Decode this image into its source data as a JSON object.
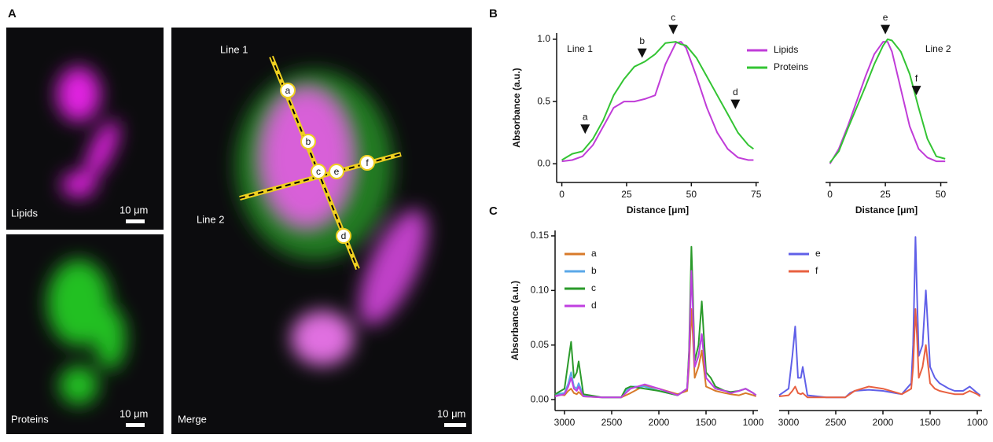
{
  "panel_a": {
    "panel": "A",
    "lipids_label": "Lipids",
    "proteins_label": "Proteins",
    "merge_label": "Merge",
    "scale_label_1": "10 μm",
    "scale_label_2": "10 μm",
    "scale_label_3": "10 μm",
    "line_1": "Line 1",
    "line_2": "Line 2",
    "markers": [
      "a",
      "b",
      "c",
      "d",
      "e",
      "f"
    ]
  },
  "chart_data": [
    {
      "type": "line",
      "panel": "B",
      "x_label": "Distance [μm]",
      "y_label": "Absorbance (a.u.)",
      "x": [
        0,
        4,
        8,
        12,
        16,
        20,
        24,
        28,
        32,
        36,
        40,
        44,
        46,
        48,
        52,
        56,
        60,
        64,
        68,
        72,
        74
      ],
      "series": [
        {
          "name": "Lipids",
          "color": "#c03cd8",
          "values": [
            0.02,
            0.03,
            0.06,
            0.15,
            0.3,
            0.45,
            0.5,
            0.5,
            0.52,
            0.55,
            0.8,
            0.97,
            0.98,
            0.93,
            0.7,
            0.45,
            0.25,
            0.12,
            0.05,
            0.03,
            0.03
          ]
        },
        {
          "name": "Proteins",
          "color": "#33c433",
          "values": [
            0.03,
            0.08,
            0.1,
            0.2,
            0.35,
            0.55,
            0.68,
            0.78,
            0.82,
            0.88,
            0.97,
            0.98,
            0.96,
            0.95,
            0.85,
            0.7,
            0.55,
            0.4,
            0.25,
            0.15,
            0.12
          ]
        }
      ],
      "xlim": [
        -2,
        76
      ],
      "ylim": [
        -0.15,
        1.05
      ],
      "xticks": [
        0,
        25,
        50,
        75
      ],
      "yticks": [
        {
          "value": 0,
          "label": "0.0"
        },
        0.5,
        {
          "value": 1,
          "label": "1.0"
        }
      ],
      "annotations": [
        {
          "text": "Line 1",
          "x": 2,
          "y": 0.92
        },
        {
          "text": "a",
          "x": 9,
          "y": 0.24,
          "arrow": true
        },
        {
          "text": "b",
          "x": 31,
          "y": 0.85,
          "arrow": true
        },
        {
          "text": "c",
          "x": 43,
          "y": 1.04,
          "arrow": true
        },
        {
          "text": "d",
          "x": 67,
          "y": 0.44,
          "arrow": true
        }
      ]
    },
    {
      "type": "line",
      "x_label": "Distance [μm]",
      "legend": "left",
      "x": [
        0,
        4,
        8,
        12,
        16,
        20,
        24,
        26,
        28,
        32,
        36,
        40,
        44,
        48,
        52
      ],
      "series": [
        {
          "name": "Lipids",
          "color": "#c03cd8",
          "values": [
            0.0,
            0.12,
            0.3,
            0.5,
            0.7,
            0.88,
            0.98,
            0.98,
            0.9,
            0.6,
            0.3,
            0.12,
            0.05,
            0.02,
            0.02
          ]
        },
        {
          "name": "Proteins",
          "color": "#33c433",
          "values": [
            0.01,
            0.1,
            0.28,
            0.45,
            0.62,
            0.8,
            0.95,
            1.0,
            0.99,
            0.9,
            0.72,
            0.45,
            0.2,
            0.06,
            0.04
          ]
        }
      ],
      "xlim": [
        -2,
        53
      ],
      "ylim": [
        -0.15,
        1.05
      ],
      "xticks": [
        0,
        25,
        50
      ],
      "annotations": [
        {
          "text": "Line 2",
          "x": 43,
          "y": 0.92
        },
        {
          "text": "e",
          "x": 25,
          "y": 1.04,
          "arrow": true
        },
        {
          "text": "f",
          "x": 39,
          "y": 0.55,
          "arrow": true
        }
      ]
    },
    {
      "type": "line",
      "panel": "C",
      "y_label": "Absorbance (a.u.)",
      "legend": "top-left",
      "x": [
        3100,
        3000,
        2960,
        2930,
        2900,
        2870,
        2850,
        2800,
        2600,
        2400,
        2350,
        2300,
        2150,
        2000,
        1800,
        1700,
        1680,
        1655,
        1640,
        1620,
        1580,
        1545,
        1500,
        1450,
        1400,
        1300,
        1240,
        1150,
        1080,
        1000,
        970
      ],
      "series": [
        {
          "name": "a",
          "color": "#d87a2a",
          "values": [
            0.005,
            0.004,
            0.008,
            0.01,
            0.006,
            0.005,
            0.007,
            0.003,
            0.002,
            0.002,
            0.004,
            0.006,
            0.013,
            0.01,
            0.005,
            0.008,
            0.03,
            0.083,
            0.06,
            0.02,
            0.03,
            0.045,
            0.012,
            0.01,
            0.008,
            0.006,
            0.005,
            0.004,
            0.006,
            0.004,
            0.003
          ]
        },
        {
          "name": "b",
          "color": "#5aa8e8",
          "values": [
            0.005,
            0.006,
            0.015,
            0.025,
            0.012,
            0.01,
            0.015,
            0.004,
            0.002,
            0.002,
            0.008,
            0.012,
            0.012,
            0.008,
            0.004,
            0.01,
            0.04,
            0.12,
            0.09,
            0.03,
            0.04,
            0.06,
            0.02,
            0.015,
            0.01,
            0.008,
            0.006,
            0.008,
            0.01,
            0.006,
            0.004
          ]
        },
        {
          "name": "c",
          "color": "#2a9a2a",
          "values": [
            0.005,
            0.01,
            0.035,
            0.053,
            0.02,
            0.025,
            0.035,
            0.005,
            0.002,
            0.002,
            0.01,
            0.012,
            0.01,
            0.008,
            0.004,
            0.01,
            0.045,
            0.14,
            0.1,
            0.035,
            0.05,
            0.09,
            0.025,
            0.02,
            0.012,
            0.008,
            0.007,
            0.008,
            0.01,
            0.006,
            0.004
          ]
        },
        {
          "name": "d",
          "color": "#c040e0",
          "values": [
            0.003,
            0.005,
            0.012,
            0.02,
            0.01,
            0.008,
            0.012,
            0.003,
            0.002,
            0.002,
            0.006,
            0.01,
            0.014,
            0.01,
            0.004,
            0.01,
            0.04,
            0.118,
            0.085,
            0.03,
            0.04,
            0.06,
            0.02,
            0.015,
            0.01,
            0.008,
            0.006,
            0.008,
            0.01,
            0.006,
            0.004
          ]
        }
      ],
      "xlim": [
        3100,
        950
      ],
      "ylim": [
        -0.01,
        0.155
      ],
      "xticks": [
        3000,
        2500,
        2000,
        1500,
        1000
      ],
      "yticks": [
        {
          "value": 0,
          "label": "0.00"
        },
        {
          "value": 0.05,
          "label": "0.05"
        },
        {
          "value": 0.1,
          "label": "0.10"
        },
        0.15
      ]
    },
    {
      "type": "line",
      "legend": "top-left",
      "x": [
        3100,
        3000,
        2960,
        2930,
        2900,
        2870,
        2850,
        2800,
        2600,
        2400,
        2350,
        2300,
        2150,
        2000,
        1800,
        1700,
        1680,
        1655,
        1640,
        1620,
        1580,
        1545,
        1500,
        1450,
        1400,
        1300,
        1240,
        1150,
        1080,
        1000,
        970
      ],
      "series": [
        {
          "name": "e",
          "color": "#6060e8",
          "values": [
            0.004,
            0.01,
            0.04,
            0.067,
            0.02,
            0.02,
            0.03,
            0.004,
            0.002,
            0.002,
            0.006,
            0.008,
            0.009,
            0.008,
            0.005,
            0.015,
            0.05,
            0.149,
            0.1,
            0.04,
            0.05,
            0.1,
            0.03,
            0.02,
            0.015,
            0.01,
            0.008,
            0.008,
            0.012,
            0.006,
            0.004
          ]
        },
        {
          "name": "f",
          "color": "#e86040",
          "values": [
            0.003,
            0.004,
            0.008,
            0.012,
            0.006,
            0.005,
            0.006,
            0.002,
            0.002,
            0.002,
            0.005,
            0.008,
            0.012,
            0.01,
            0.005,
            0.01,
            0.03,
            0.083,
            0.06,
            0.02,
            0.03,
            0.05,
            0.015,
            0.01,
            0.008,
            0.006,
            0.005,
            0.005,
            0.008,
            0.005,
            0.003
          ]
        }
      ],
      "xlim": [
        3100,
        950
      ],
      "ylim": [
        -0.01,
        0.155
      ],
      "xticks": [
        3000,
        2500,
        2000,
        1500,
        1000
      ]
    }
  ]
}
